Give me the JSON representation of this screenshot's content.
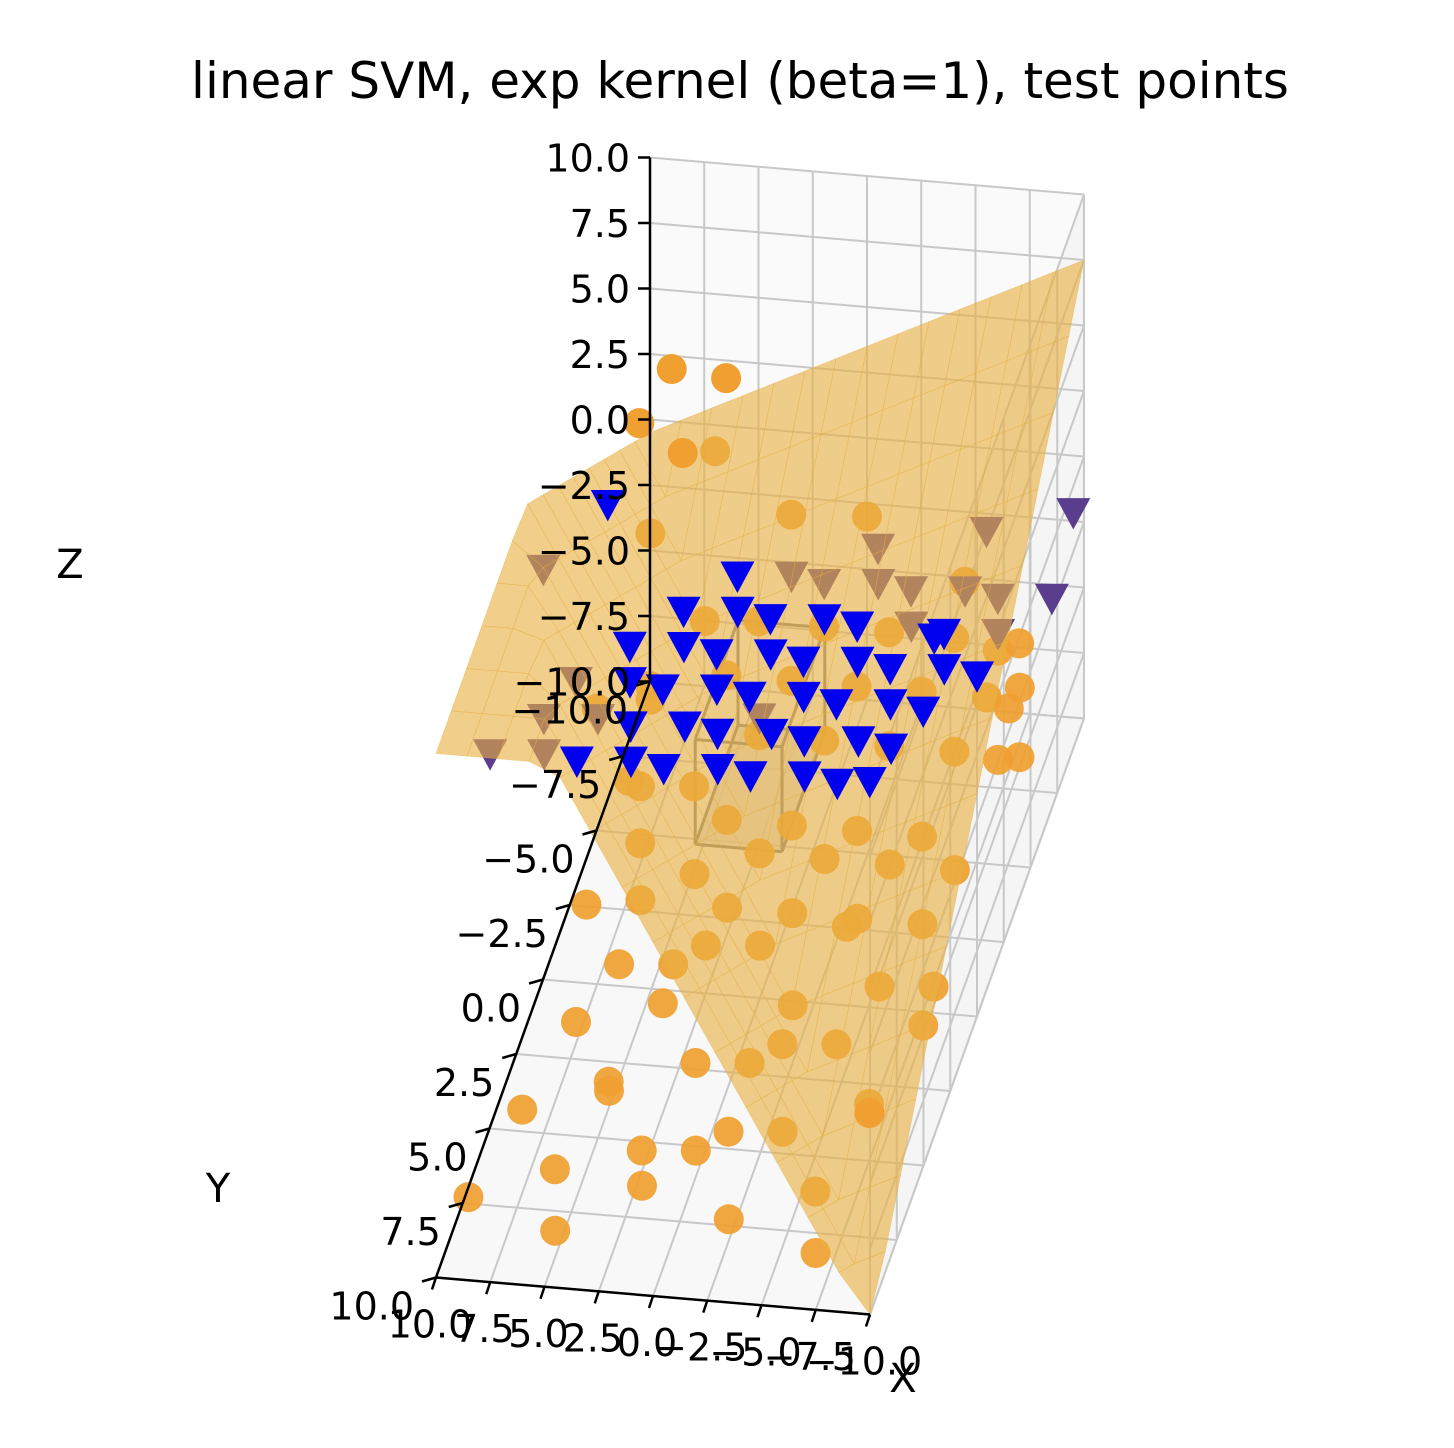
{
  "chart_data": {
    "type": "scatter",
    "subtype": "3d",
    "title": "linear SVM, exp kernel (beta=1), test points",
    "xlabel": "X",
    "ylabel": "Y",
    "zlabel": "Z",
    "xlim": [
      -10,
      10
    ],
    "ylim": [
      -10,
      10
    ],
    "zlim": [
      -10,
      10
    ],
    "x_ticks": [
      "−10.0",
      "−7.5",
      "−5.0",
      "−2.5",
      "0.0",
      "2.5",
      "5.0",
      "7.5",
      "10.0"
    ],
    "y_ticks": [
      "−10.0",
      "−7.5",
      "−5.0",
      "−2.5",
      "0.0",
      "2.5",
      "5.0",
      "7.5",
      "10.0"
    ],
    "z_ticks": [
      "10.0",
      "7.5",
      "5.0",
      "2.5",
      "0.0",
      "−2.5",
      "−5.0",
      "−7.5",
      "−10.0"
    ],
    "grid": true,
    "colors": {
      "class_a": "#f0a030",
      "class_b": "#0000ee",
      "surface": "#e8b040",
      "box": "#808080"
    },
    "series": [
      {
        "marker": "circle",
        "color": "#f0a030",
        "points": [
          [
            9,
            -8,
            -2
          ],
          [
            8,
            -6,
            -6
          ],
          [
            7,
            -3,
            -8
          ],
          [
            9.5,
            -9,
            -9
          ],
          [
            6,
            -7,
            -4
          ],
          [
            7.5,
            -4,
            -7
          ],
          [
            5,
            -7,
            -6
          ],
          [
            6.5,
            -2,
            -9
          ],
          [
            8.5,
            -5,
            -8
          ],
          [
            4,
            -8,
            -5
          ],
          [
            5.5,
            -5,
            -8
          ],
          [
            3,
            -6,
            -7
          ],
          [
            4.5,
            -3,
            -9
          ],
          [
            2,
            -7,
            -6
          ],
          [
            3.5,
            -4,
            -8
          ],
          [
            1,
            -8,
            -5
          ],
          [
            2.5,
            -2,
            -9
          ],
          [
            0,
            -6,
            -7
          ],
          [
            1.5,
            -3,
            -8
          ],
          [
            -1,
            -7,
            -6
          ],
          [
            0.5,
            -4,
            -8
          ],
          [
            -2,
            -8,
            -5
          ],
          [
            -0.5,
            -2,
            -9
          ],
          [
            -3,
            -6,
            -7
          ],
          [
            -1.5,
            -3,
            -8
          ],
          [
            -4,
            -7,
            -6
          ],
          [
            -2.5,
            -4,
            -8
          ],
          [
            -5,
            -8,
            -5
          ],
          [
            -3.5,
            -2,
            -9
          ],
          [
            -6,
            -6,
            -7
          ],
          [
            -4.5,
            -3,
            -8
          ],
          [
            -7,
            -7,
            -6
          ],
          [
            -5.5,
            -4,
            -8
          ],
          [
            -8,
            -8,
            -5
          ],
          [
            -6.5,
            -2,
            -9
          ],
          [
            -9,
            -6,
            -7
          ],
          [
            -7.5,
            -3,
            -8
          ],
          [
            -8.5,
            -5,
            -6
          ],
          [
            8,
            0,
            -7
          ],
          [
            6,
            1,
            -8
          ],
          [
            4,
            0,
            -9
          ],
          [
            2,
            1,
            -7
          ],
          [
            0,
            0,
            -8
          ],
          [
            -2,
            1,
            -9
          ],
          [
            -4,
            0,
            -7
          ],
          [
            -6,
            1,
            -8
          ],
          [
            -8,
            0,
            -9
          ],
          [
            7,
            3,
            -8
          ],
          [
            5,
            4,
            -9
          ],
          [
            3,
            3,
            -7
          ],
          [
            1,
            4,
            -8
          ],
          [
            -1,
            3,
            -9
          ],
          [
            -3,
            4,
            -7
          ],
          [
            -5,
            3,
            -8
          ],
          [
            -7,
            4,
            -9
          ],
          [
            -9,
            3,
            -7
          ],
          [
            8,
            6,
            -8
          ],
          [
            6,
            7,
            -9
          ],
          [
            4,
            6,
            -7
          ],
          [
            2,
            7,
            -8
          ],
          [
            0,
            6,
            -9
          ],
          [
            -2,
            7,
            -7
          ],
          [
            -4,
            6,
            -8
          ],
          [
            -6,
            7,
            -9
          ],
          [
            -8,
            6,
            -7
          ],
          [
            9,
            9,
            -8
          ],
          [
            5,
            9,
            -9
          ],
          [
            1,
            9,
            -7
          ],
          [
            -3,
            9,
            -8
          ],
          [
            -7,
            9,
            -9
          ],
          [
            9,
            -10,
            2
          ],
          [
            10,
            -9,
            1
          ],
          [
            8,
            -9,
            0
          ],
          [
            7,
            -10,
            -1
          ],
          [
            6,
            -9,
            3
          ],
          [
            9,
            -3,
            -3
          ],
          [
            -8,
            -6,
            -3
          ],
          [
            -9,
            -5,
            -4
          ],
          [
            -10,
            -4,
            -2
          ],
          [
            3,
            -9,
            -2
          ],
          [
            -5,
            -9,
            -4
          ],
          [
            0,
            -10,
            -3
          ]
        ]
      },
      {
        "marker": "triangle-down",
        "color": "#0000ee",
        "points": [
          [
            8,
            9,
            9
          ],
          [
            6,
            8,
            8
          ],
          [
            4,
            9,
            9
          ],
          [
            2,
            8,
            8
          ],
          [
            0,
            9,
            9
          ],
          [
            -2,
            8,
            8
          ],
          [
            -4,
            9,
            9
          ],
          [
            -6,
            8,
            8
          ],
          [
            -8,
            9,
            9
          ],
          [
            -9,
            8,
            8
          ],
          [
            7,
            6,
            7
          ],
          [
            5,
            5,
            6
          ],
          [
            3,
            6,
            7
          ],
          [
            1,
            5,
            6
          ],
          [
            -1,
            6,
            7
          ],
          [
            -3,
            5,
            6
          ],
          [
            -5,
            6,
            7
          ],
          [
            -7,
            5,
            6
          ],
          [
            -9,
            6,
            7
          ],
          [
            7,
            3,
            5
          ],
          [
            5,
            2,
            4
          ],
          [
            3,
            3,
            5
          ],
          [
            1,
            2,
            4
          ],
          [
            -1,
            3,
            5
          ],
          [
            -3,
            2,
            4
          ],
          [
            -5,
            3,
            5
          ],
          [
            -7,
            2,
            4
          ],
          [
            -9,
            3,
            5
          ],
          [
            6,
            0,
            3
          ],
          [
            4,
            -1,
            2
          ],
          [
            2,
            0,
            3
          ],
          [
            0,
            -1,
            2
          ],
          [
            -2,
            0,
            3
          ],
          [
            -4,
            -1,
            2
          ],
          [
            -6,
            0,
            3
          ],
          [
            -8,
            -1,
            2
          ],
          [
            -10,
            0,
            3
          ],
          [
            5,
            -3,
            1
          ],
          [
            3,
            -4,
            0
          ],
          [
            1,
            -3,
            1
          ],
          [
            -1,
            -4,
            0
          ],
          [
            -3,
            -3,
            1
          ],
          [
            -5,
            -4,
            0
          ],
          [
            -7,
            -3,
            1
          ],
          [
            -9,
            -4,
            0
          ],
          [
            4,
            -6,
            -1
          ],
          [
            2,
            -7,
            -2
          ],
          [
            0,
            -6,
            -1
          ],
          [
            -2,
            -7,
            -2
          ],
          [
            -4,
            -6,
            -1
          ],
          [
            -6,
            -7,
            -2
          ],
          [
            -8,
            -6,
            -1
          ],
          [
            -10,
            -7,
            -2
          ],
          [
            9,
            2,
            8
          ],
          [
            -10,
            4,
            9
          ],
          [
            8,
            -2,
            6
          ],
          [
            -1,
            -9,
            -3
          ],
          [
            -6,
            -9,
            -2
          ],
          [
            -10,
            -9,
            -1
          ],
          [
            2,
            -4,
            -4
          ]
        ]
      }
    ]
  }
}
